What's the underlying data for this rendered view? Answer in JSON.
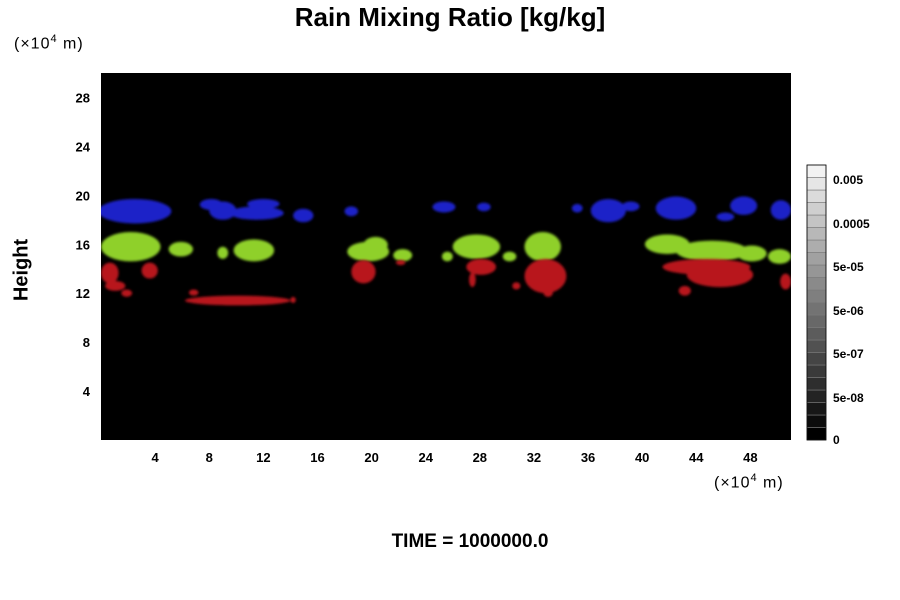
{
  "chart_data": {
    "type": "heatmap",
    "title": "Rain Mixing Ratio [kg/kg]",
    "ylabel": "Height",
    "y_unit": {
      "prefix": "(×10",
      "exp": "4",
      "suffix": " m)"
    },
    "x_unit": {
      "prefix": "(×10",
      "exp": "4",
      "suffix": " m)"
    },
    "xlim": [
      0,
      51
    ],
    "ylim": [
      0,
      30
    ],
    "x_ticks": [
      4,
      8,
      12,
      16,
      20,
      24,
      28,
      32,
      36,
      40,
      44,
      48
    ],
    "y_ticks": [
      4,
      8,
      12,
      16,
      20,
      24,
      28
    ],
    "background_color": "#000000",
    "colorbar": {
      "labels": [
        "0.005",
        "0.0005",
        "5e-05",
        "5e-06",
        "5e-07",
        "5e-08",
        "0"
      ],
      "levels": 22,
      "low_color": "#000000",
      "high_color": "#f2f2f2"
    },
    "layers": [
      {
        "color": "#1b20c8",
        "blobs": [
          {
            "x": [
              -0.2,
              5.2
            ],
            "y": [
              17.7,
              19.7
            ]
          },
          {
            "x": [
              3.5,
              4.5
            ],
            "y": [
              18.6,
              19.5
            ]
          },
          {
            "x": [
              7.3,
              9.0
            ],
            "y": [
              18.8,
              19.7
            ]
          },
          {
            "x": [
              8.0,
              10.0
            ],
            "y": [
              18.0,
              19.5
            ]
          },
          {
            "x": [
              9.5,
              13.5
            ],
            "y": [
              18.0,
              19.1
            ]
          },
          {
            "x": [
              10.8,
              13.2
            ],
            "y": [
              18.9,
              19.7
            ]
          },
          {
            "x": [
              14.2,
              15.7
            ],
            "y": [
              17.8,
              18.9
            ]
          },
          {
            "x": [
              18.0,
              19.0
            ],
            "y": [
              18.3,
              19.1
            ]
          },
          {
            "x": [
              24.5,
              26.2
            ],
            "y": [
              18.6,
              19.5
            ]
          },
          {
            "x": [
              27.8,
              28.8
            ],
            "y": [
              18.7,
              19.4
            ]
          },
          {
            "x": [
              34.8,
              35.6
            ],
            "y": [
              18.6,
              19.3
            ]
          },
          {
            "x": [
              36.2,
              38.8
            ],
            "y": [
              17.8,
              19.7
            ]
          },
          {
            "x": [
              38.5,
              39.8
            ],
            "y": [
              18.7,
              19.5
            ]
          },
          {
            "x": [
              41.0,
              44.0
            ],
            "y": [
              18.0,
              19.9
            ]
          },
          {
            "x": [
              46.5,
              48.5
            ],
            "y": [
              18.4,
              19.9
            ]
          },
          {
            "x": [
              45.5,
              46.8
            ],
            "y": [
              17.9,
              18.6
            ]
          },
          {
            "x": [
              49.5,
              51.0
            ],
            "y": [
              18.0,
              19.6
            ]
          }
        ]
      },
      {
        "color": "#8fd02a",
        "blobs": [
          {
            "x": [
              0.0,
              4.4
            ],
            "y": [
              14.6,
              17.0
            ]
          },
          {
            "x": [
              5.0,
              6.8
            ],
            "y": [
              15.0,
              16.2
            ]
          },
          {
            "x": [
              8.6,
              9.4
            ],
            "y": [
              14.8,
              15.8
            ]
          },
          {
            "x": [
              9.8,
              12.8
            ],
            "y": [
              14.6,
              16.4
            ]
          },
          {
            "x": [
              18.2,
              21.3
            ],
            "y": [
              14.6,
              16.2
            ]
          },
          {
            "x": [
              19.4,
              21.2
            ],
            "y": [
              15.3,
              16.6
            ]
          },
          {
            "x": [
              21.6,
              23.0
            ],
            "y": [
              14.6,
              15.6
            ]
          },
          {
            "x": [
              25.2,
              26.0
            ],
            "y": [
              14.6,
              15.4
            ]
          },
          {
            "x": [
              26.0,
              29.5
            ],
            "y": [
              14.8,
              16.8
            ]
          },
          {
            "x": [
              29.7,
              30.7
            ],
            "y": [
              14.6,
              15.4
            ]
          },
          {
            "x": [
              31.3,
              34.0
            ],
            "y": [
              14.6,
              17.0
            ]
          },
          {
            "x": [
              40.2,
              43.5
            ],
            "y": [
              15.2,
              16.8
            ]
          },
          {
            "x": [
              42.5,
              47.8
            ],
            "y": [
              14.6,
              16.3
            ]
          },
          {
            "x": [
              47.0,
              49.2
            ],
            "y": [
              14.6,
              15.9
            ]
          },
          {
            "x": [
              49.3,
              51.0
            ],
            "y": [
              14.4,
              15.6
            ]
          }
        ]
      },
      {
        "color": "#b8141e",
        "blobs": [
          {
            "x": [
              0.0,
              1.3
            ],
            "y": [
              12.8,
              14.5
            ]
          },
          {
            "x": [
              0.3,
              1.8
            ],
            "y": [
              12.2,
              13.0
            ]
          },
          {
            "x": [
              1.5,
              2.3
            ],
            "y": [
              11.7,
              12.3
            ]
          },
          {
            "x": [
              3.0,
              4.2
            ],
            "y": [
              13.2,
              14.5
            ]
          },
          {
            "x": [
              6.2,
              14.0
            ],
            "y": [
              11.0,
              11.8
            ]
          },
          {
            "x": [
              6.5,
              7.2
            ],
            "y": [
              11.8,
              12.3
            ]
          },
          {
            "x": [
              14.0,
              14.4
            ],
            "y": [
              11.2,
              11.7
            ]
          },
          {
            "x": [
              18.5,
              20.3
            ],
            "y": [
              12.8,
              14.7
            ]
          },
          {
            "x": [
              21.8,
              22.5
            ],
            "y": [
              14.3,
              14.7
            ]
          },
          {
            "x": [
              27.0,
              29.2
            ],
            "y": [
              13.5,
              14.8
            ]
          },
          {
            "x": [
              27.2,
              27.7
            ],
            "y": [
              12.5,
              13.7
            ]
          },
          {
            "x": [
              30.4,
              31.0
            ],
            "y": [
              12.3,
              12.9
            ]
          },
          {
            "x": [
              31.3,
              34.4
            ],
            "y": [
              12.0,
              14.8
            ]
          },
          {
            "x": [
              32.7,
              33.4
            ],
            "y": [
              11.7,
              12.4
            ]
          },
          {
            "x": [
              41.5,
              48.0
            ],
            "y": [
              13.5,
              14.8
            ]
          },
          {
            "x": [
              43.3,
              48.2
            ],
            "y": [
              12.5,
              14.5
            ]
          },
          {
            "x": [
              42.7,
              43.6
            ],
            "y": [
              11.8,
              12.6
            ]
          },
          {
            "x": [
              50.2,
              51.0
            ],
            "y": [
              12.3,
              13.6
            ]
          }
        ]
      }
    ]
  },
  "footer": {
    "time_label": "TIME = 1000000.0"
  }
}
